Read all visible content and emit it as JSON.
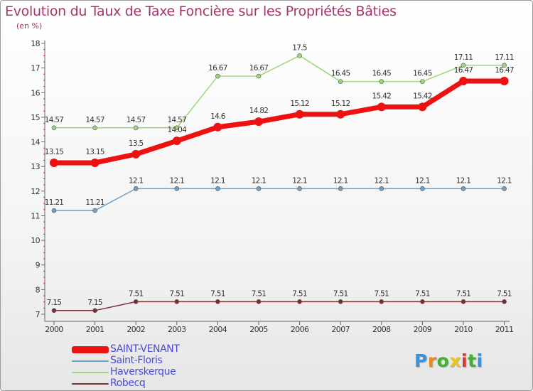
{
  "chart_data": {
    "type": "line",
    "title": "Evolution du Taux de Taxe Foncière sur les Propriétés Bâties",
    "subtitle": "(en %)",
    "x": [
      "2000",
      "2001",
      "2002",
      "2003",
      "2004",
      "2005",
      "2006",
      "2007",
      "2008",
      "2009",
      "2010",
      "2011"
    ],
    "ylim": [
      7,
      18
    ],
    "yticks": [
      "7",
      "8",
      "9",
      "10",
      "11",
      "12",
      "13",
      "14",
      "15",
      "16",
      "17",
      "18"
    ],
    "grid": false,
    "legend_position": "bottom-left",
    "series": [
      {
        "name": "Robecq",
        "color": "#7a2f35",
        "values": [
          7.15,
          7.15,
          7.51,
          7.51,
          7.51,
          7.51,
          7.51,
          7.51,
          7.51,
          7.51,
          7.51,
          7.51
        ],
        "labels": [
          "7.15",
          "7.15",
          "7.51",
          "7.51",
          "7.51",
          "7.51",
          "7.51",
          "7.51",
          "7.51",
          "7.51",
          "7.51",
          "7.51"
        ]
      },
      {
        "name": "Saint-Floris",
        "color": "#6fa0c6",
        "values": [
          11.21,
          11.21,
          12.1,
          12.1,
          12.1,
          12.1,
          12.1,
          12.1,
          12.1,
          12.1,
          12.1,
          12.1
        ],
        "labels": [
          "11.21",
          "11.21",
          "12.1",
          "12.1",
          "12.1",
          "12.1",
          "12.1",
          "12.1",
          "12.1",
          "12.1",
          "12.1",
          "12.1"
        ]
      },
      {
        "name": "Haverskerque",
        "color": "#9ed77a",
        "values": [
          14.57,
          14.57,
          14.57,
          14.57,
          16.67,
          16.67,
          17.5,
          16.45,
          16.45,
          16.45,
          17.11,
          17.11
        ],
        "labels": [
          "14.57",
          "14.57",
          "14.57",
          "14.57",
          "16.67",
          "16.67",
          "17.5",
          "16.45",
          "16.45",
          "16.45",
          "17.11",
          "17.11"
        ]
      },
      {
        "name": "SAINT-VENANT",
        "color": "#ee1111",
        "values": [
          13.15,
          13.15,
          13.5,
          14.04,
          14.6,
          14.82,
          15.12,
          15.12,
          15.42,
          15.42,
          16.47,
          16.47
        ],
        "labels": [
          "13.15",
          "13.15",
          "13.5",
          "14.04",
          "14.6",
          "14.82",
          "15.12",
          "15.12",
          "15.42",
          "15.42",
          "16.47",
          "16.47"
        ]
      }
    ]
  },
  "legend": [
    {
      "label": "SAINT-VENANT",
      "color": "#ee1111"
    },
    {
      "label": "Saint-Floris",
      "color": "#6fa0c6"
    },
    {
      "label": "Haverskerque",
      "color": "#9ed77a"
    },
    {
      "label": "Robecq",
      "color": "#7a2f35"
    }
  ],
  "logo": {
    "letters": [
      "P",
      "r",
      "o",
      "x",
      "i",
      "t",
      "i"
    ],
    "colors": [
      "#3c8fd8",
      "#e88a1b",
      "#44b02f",
      "#e8c61b",
      "#d8342e",
      "#44b02f",
      "#3c8fd8"
    ]
  }
}
